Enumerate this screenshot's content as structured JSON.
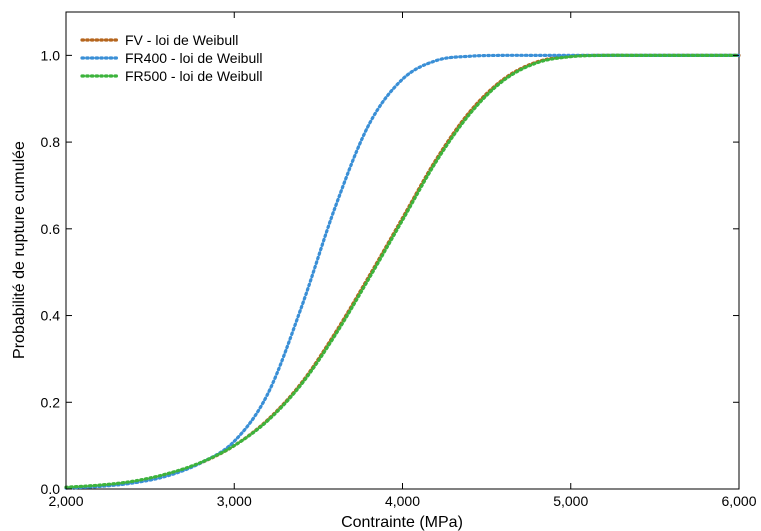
{
  "chart_data": {
    "type": "line",
    "xlabel": "Contrainte (MPa)",
    "ylabel": "Probabilité de rupture  cumulée",
    "xlim": [
      2000,
      6000
    ],
    "ylim": [
      0,
      1.1
    ],
    "x_ticks": [
      2000,
      3000,
      4000,
      5000,
      6000
    ],
    "x_tick_labels": [
      "2,000",
      "3,000",
      "4,000",
      "5,000",
      "6,000"
    ],
    "y_ticks": [
      0,
      0.2,
      0.4,
      0.6,
      0.8,
      1.0
    ],
    "y_tick_labels": [
      "0.0",
      "0.2",
      "0.4",
      "0.6",
      "0.8",
      "1.0"
    ],
    "grid": false,
    "legend_position": "top-left",
    "line_style": "dotted",
    "x": [
      2000,
      2200,
      2400,
      2600,
      2800,
      3000,
      3200,
      3400,
      3600,
      3800,
      4000,
      4200,
      4400,
      4600,
      4800,
      5000,
      5200,
      5400,
      5600,
      5800,
      6000
    ],
    "series": [
      {
        "name": "FV - loi de Weibull",
        "color": "#b5651d",
        "values": [
          0.003,
          0.008,
          0.017,
          0.034,
          0.06,
          0.1,
          0.16,
          0.245,
          0.36,
          0.49,
          0.625,
          0.76,
          0.87,
          0.945,
          0.985,
          0.998,
          1.0,
          1.0,
          1.0,
          1.0,
          1.0
        ]
      },
      {
        "name": "FR400 - loi de Weibull",
        "color": "#3a8fd6",
        "values": [
          0.002,
          0.006,
          0.014,
          0.03,
          0.06,
          0.11,
          0.22,
          0.42,
          0.65,
          0.84,
          0.945,
          0.988,
          0.998,
          1.0,
          1.0,
          1.0,
          1.0,
          1.0,
          1.0,
          1.0,
          1.0
        ]
      },
      {
        "name": "FR500 - loi de Weibull",
        "color": "#3cb33c",
        "values": [
          0.004,
          0.009,
          0.018,
          0.035,
          0.061,
          0.1,
          0.158,
          0.242,
          0.355,
          0.485,
          0.62,
          0.755,
          0.865,
          0.942,
          0.983,
          0.997,
          1.0,
          1.0,
          1.0,
          1.0,
          1.0
        ]
      }
    ]
  }
}
